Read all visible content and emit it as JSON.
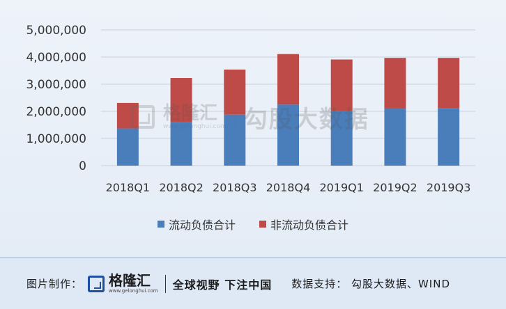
{
  "chart_data": {
    "type": "bar",
    "stacked": true,
    "categories": [
      "2018Q1",
      "2018Q2",
      "2018Q3",
      "2018Q4",
      "2019Q1",
      "2019Q2",
      "2019Q3"
    ],
    "series": [
      {
        "name": "流动负债合计",
        "color": "#4a7ebb",
        "values": [
          1370000,
          1600000,
          1880000,
          2250000,
          2010000,
          2100000,
          2110000
        ]
      },
      {
        "name": "非流动负债合计",
        "color": "#be4b48",
        "values": [
          940000,
          1630000,
          1660000,
          1860000,
          1900000,
          1870000,
          1860000
        ]
      }
    ],
    "y_ticks": [
      "5,000,000",
      "4,000,000",
      "3,000,000",
      "2,000,000",
      "1,000,000",
      "0"
    ],
    "ylim": [
      0,
      5000000
    ],
    "grid": true,
    "legend_position": "bottom"
  },
  "watermark": {
    "brand": "格隆汇",
    "url": "www.gelonghui.com",
    "source": "勾股大数据"
  },
  "footer": {
    "made_label": "图片制作：",
    "brand": "格隆汇",
    "brand_url": "www.gelonghui.com",
    "slogan": "全球视野 下注中国",
    "source": "数据支持： 勾股大数据、WIND"
  }
}
